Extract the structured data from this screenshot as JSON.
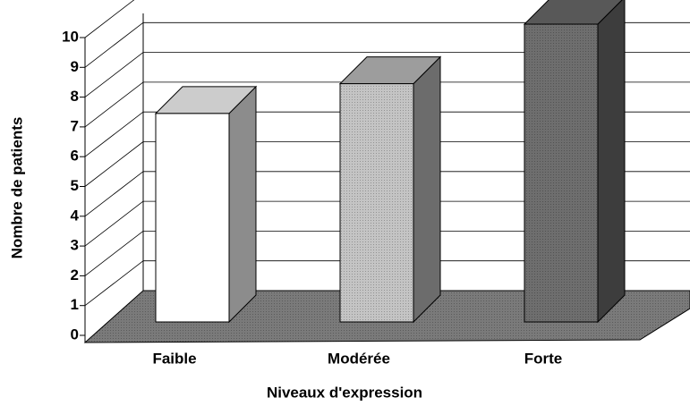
{
  "chart_data": {
    "type": "bar3d",
    "x_label": "Niveaux d'expression",
    "y_label": "Nombre de patients",
    "categories": [
      "Faible",
      "Modérée",
      "Forte"
    ],
    "values": [
      7,
      8,
      10
    ],
    "colors": [
      "#ffffff",
      "#c4c4c4",
      "#6e6e6e"
    ],
    "ylim": [
      0,
      10
    ],
    "yticks": [
      0,
      1,
      2,
      3,
      4,
      5,
      6,
      7,
      8,
      9,
      10
    ],
    "grid": true
  }
}
